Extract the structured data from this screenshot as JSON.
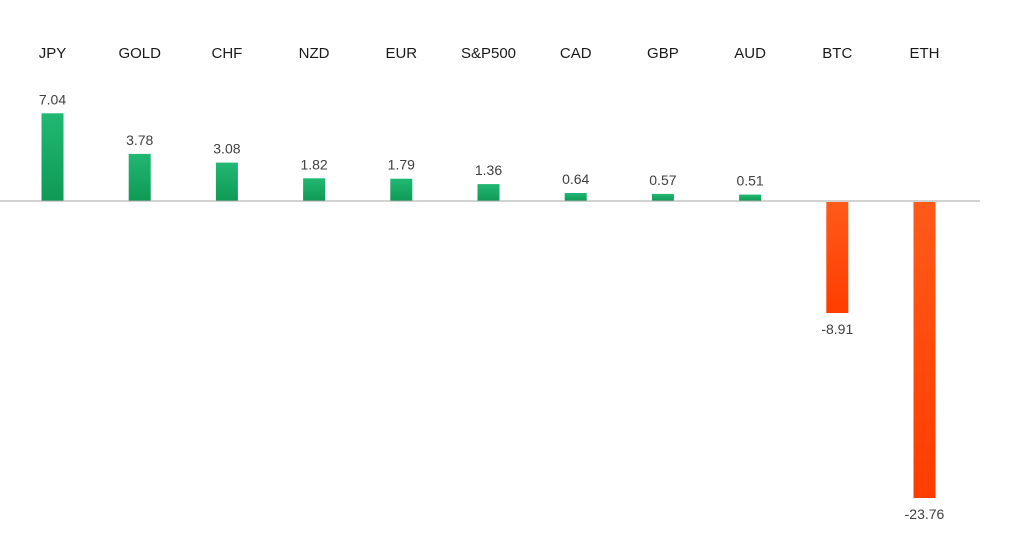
{
  "chart_data": {
    "type": "bar",
    "title": "",
    "xlabel": "",
    "ylabel": "",
    "categories": [
      "JPY",
      "GOLD",
      "CHF",
      "NZD",
      "EUR",
      "S&P500",
      "CAD",
      "GBP",
      "AUD",
      "BTC",
      "ETH"
    ],
    "values": [
      7.04,
      3.78,
      3.08,
      1.82,
      1.79,
      1.36,
      0.64,
      0.57,
      0.51,
      -8.91,
      -23.76
    ],
    "value_labels": [
      "7.04",
      "3.78",
      "3.08",
      "1.82",
      "1.79",
      "1.36",
      "0.64",
      "0.57",
      "0.51",
      "-8.91",
      "-23.76"
    ],
    "ylim": [
      -23.76,
      7.04
    ],
    "category_labels_position": "top",
    "grid": false,
    "legend": "none",
    "colors": {
      "positive_top": "#21b873",
      "positive_bottom": "#0f9a55",
      "negative_top": "#ff5a1a",
      "negative_bottom": "#ff3d00",
      "zero_line": "#a6a6a6"
    }
  }
}
